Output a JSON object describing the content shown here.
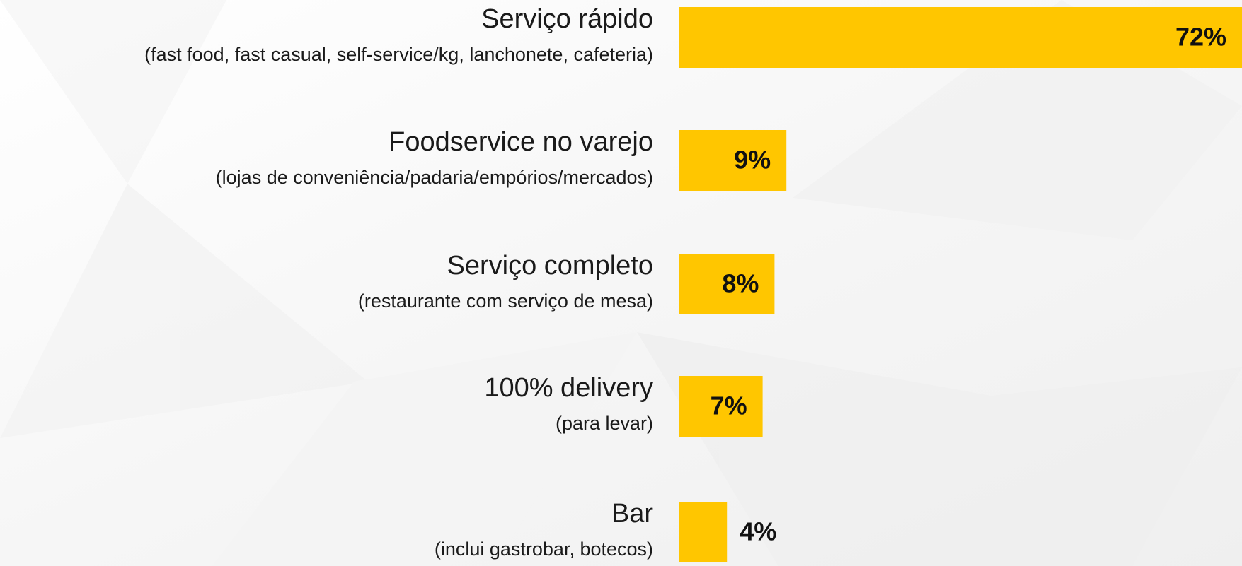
{
  "chart_data": {
    "type": "barh",
    "categories": [
      "Serviço rápido",
      "Foodservice no varejo",
      "Serviço completo",
      "100% delivery",
      "Bar"
    ],
    "category_notes": [
      "(fast food, fast casual, self-service/kg, lanchonete, cafeteria)",
      "(lojas de conveniência/padaria/empórios/mercados)",
      "(restaurante com serviço de mesa)",
      "(para levar)",
      "(inclui gastrobar, botecos)"
    ],
    "values": [
      72,
      9,
      8,
      7,
      4
    ],
    "value_labels": [
      "72%",
      "9%",
      "8%",
      "7%",
      "4%"
    ],
    "color": "#ffc600"
  }
}
